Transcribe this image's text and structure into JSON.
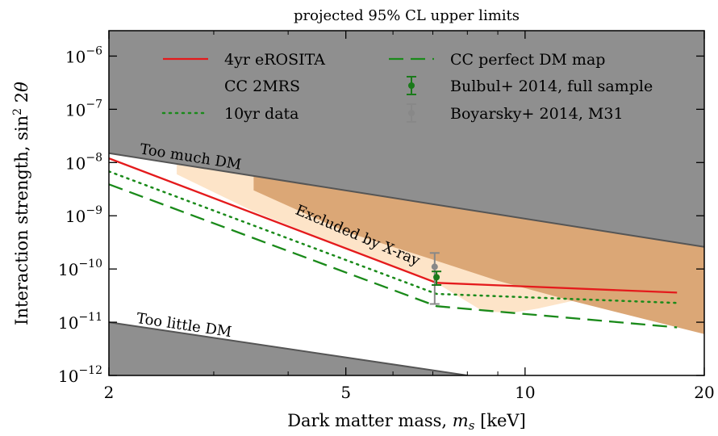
{
  "chart_data": {
    "type": "line",
    "title": "projected 95% CL upper limits",
    "xlabel": "Dark matter mass, m_s [keV]",
    "ylabel": "Interaction strength, sin² 2θ",
    "xscale": "log",
    "yscale": "log",
    "xlim": [
      2,
      20
    ],
    "ylim": [
      1e-12,
      3e-06
    ],
    "xticks": [
      2,
      5,
      10,
      20
    ],
    "xtick_labels": [
      "2",
      "5",
      "10",
      "20"
    ],
    "yticks": [
      1e-12,
      1e-11,
      1e-10,
      1e-09,
      1e-08,
      1e-07,
      1e-06
    ],
    "ytick_labels": [
      {
        "base": "10",
        "exp": "−12"
      },
      {
        "base": "10",
        "exp": "−11"
      },
      {
        "base": "10",
        "exp": "−10"
      },
      {
        "base": "10",
        "exp": "−9"
      },
      {
        "base": "10",
        "exp": "−8"
      },
      {
        "base": "10",
        "exp": "−7"
      },
      {
        "base": "10",
        "exp": "−6"
      }
    ],
    "legend_position": "top",
    "series": [
      {
        "name": "4yr eROSITA",
        "style": "solid",
        "color": "#e41a1c",
        "x": [
          2.0,
          7.1,
          18.0
        ],
        "y": [
          1.2e-08,
          5.5e-11,
          3.6e-11
        ]
      },
      {
        "name": "CC 2MRS",
        "style": "none",
        "color": "#ffffff",
        "x": [],
        "y": []
      },
      {
        "name": "10yr data",
        "style": "dotted",
        "color": "#1a8a1a",
        "x": [
          2.0,
          7.1,
          18.0
        ],
        "y": [
          6.8e-09,
          3.4e-11,
          2.3e-11
        ]
      },
      {
        "name": "CC perfect DM map",
        "style": "dashed",
        "color": "#1a8a1a",
        "x": [
          2.0,
          7.1,
          18.0
        ],
        "y": [
          3.9e-09,
          2e-11,
          8e-12
        ]
      }
    ],
    "points": [
      {
        "name": "Bulbul+ 2014, full sample",
        "color": "#1a7a1a",
        "x": 7.1,
        "y": 7e-11,
        "ylow": 5e-11,
        "yhigh": 9e-11
      },
      {
        "name": "Boyarsky+ 2014, M31",
        "color": "#888888",
        "x": 7.05,
        "y": 1.1e-10,
        "ylow": 2.2e-11,
        "yhigh": 2e-10
      }
    ],
    "regions": {
      "too_much_dm": {
        "label": "Too much DM",
        "color": "#8f8f8f",
        "boundary_x": [
          2.0,
          20.0
        ],
        "boundary_y": [
          1.5e-08,
          2.6e-10
        ]
      },
      "too_little_dm": {
        "label": "Too little DM",
        "color": "#8f8f8f",
        "boundary_x": [
          2.0,
          8.0
        ],
        "boundary_y": [
          1e-11,
          1e-12
        ]
      },
      "xray_excluded": {
        "label": "Excluded by X-ray",
        "color": "#dba776",
        "boundary_x": [
          3.5,
          5.0,
          7.0,
          9.0,
          12.0,
          20.0
        ],
        "boundary_y": [
          3e-09,
          5e-10,
          1.5e-10,
          6e-11,
          2.5e-11,
          6e-12
        ]
      },
      "xray_light_band": {
        "color": "#fde4c8",
        "boundary_x": [
          2.6,
          3.5,
          5.0,
          7.0,
          8.5,
          9.5,
          10.5,
          12.0
        ],
        "boundary_y": [
          6e-09,
          1.2e-09,
          2.5e-10,
          6e-11,
          1.6e-11,
          1.5e-11,
          1.8e-11,
          2.5e-11
        ]
      }
    }
  }
}
